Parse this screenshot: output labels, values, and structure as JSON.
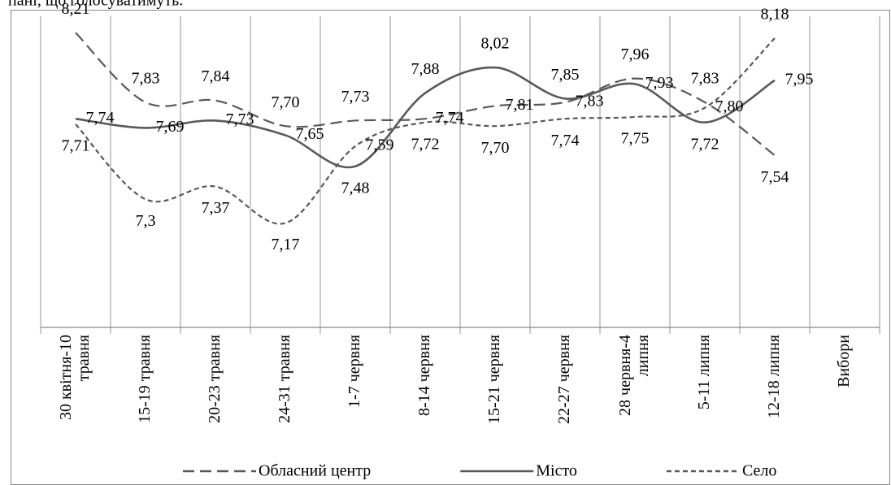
{
  "caption": "пані, що голосуватимуть.",
  "chart_data": {
    "type": "line",
    "categories": [
      "30 квітня-10\nтравня",
      "15-19 травня",
      "20-23 травня",
      "24-31 травня",
      "1-7 червня",
      "8-14 червня",
      "15-21 червня",
      "22-27 червня",
      "28 червня-4\nлипня",
      "5-11 липня",
      "12-18 липня",
      "Вибори"
    ],
    "ylim": [
      6.6,
      8.3
    ],
    "series": [
      {
        "name": "Обласний центр",
        "color": "#595959",
        "dash": "long",
        "values": [
          8.21,
          7.83,
          7.84,
          7.7,
          7.73,
          7.74,
          7.81,
          7.83,
          7.96,
          7.83,
          7.54,
          null
        ],
        "value_labels": [
          "8,21",
          "7,83",
          "7,84",
          "7,70",
          "7,73",
          "7,74",
          "7,81",
          "7,83",
          "7,96",
          "7,83",
          "7,54",
          null
        ]
      },
      {
        "name": "Місто",
        "color": "#595959",
        "dash": "solid",
        "values": [
          7.74,
          7.69,
          7.73,
          7.65,
          7.48,
          7.88,
          8.02,
          7.85,
          7.93,
          7.72,
          7.95,
          null
        ],
        "value_labels": [
          "7,74",
          "7,69",
          "7,73",
          "7,65",
          "7,48",
          "7,88",
          "8,02",
          "7,85",
          "7,93",
          "7,72",
          "7,95",
          null
        ]
      },
      {
        "name": "Село",
        "color": "#595959",
        "dash": "short",
        "values": [
          7.71,
          7.3,
          7.37,
          7.17,
          7.59,
          7.72,
          7.7,
          7.74,
          7.75,
          7.8,
          8.18,
          null
        ],
        "value_labels": [
          "7,71",
          "7,3",
          "7,37",
          "7,17",
          "7,59",
          "7,72",
          "7,70",
          "7,74",
          "7,75",
          "7,80",
          "8,18",
          null
        ]
      }
    ]
  }
}
